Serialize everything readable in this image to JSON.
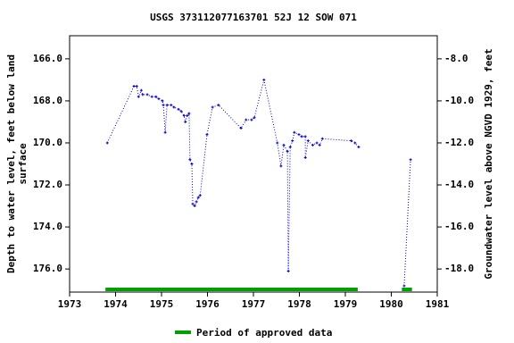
{
  "chart_data": {
    "type": "line",
    "title": "USGS 373112077163701 52J 12 SOW 071",
    "y_label": "Depth to water level, feet below land surface",
    "y2_label": "Groundwater level above NGVD 1929, feet",
    "xlim": [
      1973,
      1981
    ],
    "xticks": [
      1973,
      1974,
      1975,
      1976,
      1977,
      1978,
      1979,
      1980,
      1981
    ],
    "ylim": [
      177.1,
      164.9
    ],
    "yticks": [
      {
        "value": 166,
        "label": "166.0"
      },
      {
        "value": 168,
        "label": "168.0"
      },
      {
        "value": 170,
        "label": "170.0"
      },
      {
        "value": 172,
        "label": "172.0"
      },
      {
        "value": 174,
        "label": "174.0"
      },
      {
        "value": 176,
        "label": "176.0"
      }
    ],
    "y2lim": [
      -19.1,
      -6.9
    ],
    "y2ticks": [
      {
        "value": -8,
        "label": "-8.0"
      },
      {
        "value": -10,
        "label": "-10.0"
      },
      {
        "value": -12,
        "label": "-12.0"
      },
      {
        "value": -14,
        "label": "-14.0"
      },
      {
        "value": -16,
        "label": "-16.0"
      },
      {
        "value": -18,
        "label": "-18.0"
      }
    ],
    "x": [
      1973.82,
      1974.4,
      1974.46,
      1974.5,
      1974.56,
      1974.59,
      1974.69,
      1974.79,
      1974.88,
      1974.94,
      1975.02,
      1975.04,
      1975.08,
      1975.12,
      1975.21,
      1975.27,
      1975.37,
      1975.43,
      1975.49,
      1975.52,
      1975.56,
      1975.6,
      1975.62,
      1975.66,
      1975.68,
      1975.72,
      1975.76,
      1975.8,
      1975.84,
      1975.99,
      1976.11,
      1976.24,
      1976.73,
      1976.84,
      1976.96,
      1977.02,
      1977.23,
      1977.52,
      1977.6,
      1977.66,
      1977.74,
      1977.76,
      1977.8,
      1977.85,
      1977.89,
      1977.99,
      1978.05,
      1978.13,
      1978.13,
      1978.19,
      1978.29,
      1978.38,
      1978.44,
      1978.5,
      1979.13,
      1979.21,
      1979.29,
      null,
      1980.28,
      1980.42
    ],
    "series": [
      {
        "name": "Depth to water level",
        "color": "#0000cc",
        "values": [
          170.0,
          167.3,
          167.3,
          167.8,
          167.5,
          167.7,
          167.7,
          167.8,
          167.8,
          167.9,
          168.0,
          168.2,
          169.5,
          168.2,
          168.2,
          168.3,
          168.4,
          168.5,
          168.7,
          169.0,
          168.7,
          168.6,
          170.8,
          171.0,
          172.9,
          173.0,
          172.8,
          172.6,
          172.5,
          169.6,
          168.3,
          168.2,
          169.3,
          168.9,
          168.9,
          168.8,
          167.0,
          170.0,
          171.1,
          170.1,
          170.4,
          176.1,
          170.2,
          169.9,
          169.5,
          169.6,
          169.7,
          169.7,
          170.7,
          169.9,
          170.1,
          170.0,
          170.1,
          169.8,
          169.9,
          170.0,
          170.2,
          null,
          176.8,
          170.8
        ]
      }
    ],
    "approved": {
      "name": "Period of approved data",
      "color": "#00a000",
      "ranges": [
        [
          1973.78,
          1979.27
        ],
        [
          1980.23,
          1980.45
        ]
      ]
    }
  }
}
